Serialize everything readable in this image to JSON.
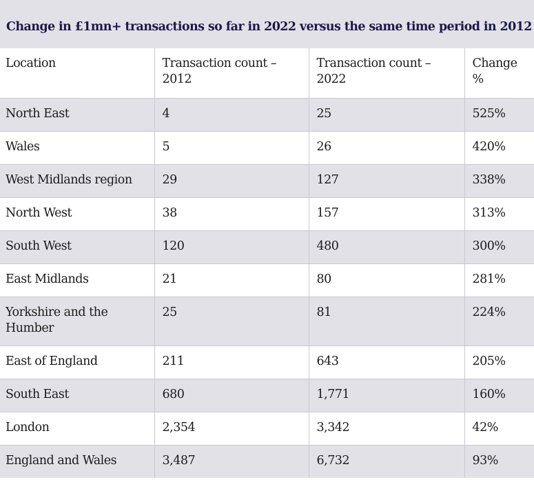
{
  "title": "Change in £1mn+ transactions so far in 2022 versus the same time period in 2012",
  "headers": {
    "location": "Location",
    "count_2012": "Transaction count – 2012",
    "count_2022": "Transaction count – 2022",
    "change": "Change %"
  },
  "rows": [
    {
      "location": "North East",
      "count_2012": "4",
      "count_2022": "25",
      "change": "525%"
    },
    {
      "location": "Wales",
      "count_2012": "5",
      "count_2022": "26",
      "change": "420%"
    },
    {
      "location": "West Midlands region",
      "count_2012": "29",
      "count_2022": "127",
      "change": "338%"
    },
    {
      "location": "North West",
      "count_2012": "38",
      "count_2022": "157",
      "change": "313%"
    },
    {
      "location": "South West",
      "count_2012": "120",
      "count_2022": "480",
      "change": "300%"
    },
    {
      "location": "East Midlands",
      "count_2012": "21",
      "count_2022": "80",
      "change": "281%"
    },
    {
      "location": "Yorkshire and the Humber",
      "count_2012": "25",
      "count_2022": "81",
      "change": "224%"
    },
    {
      "location": "East of England",
      "count_2012": "211",
      "count_2022": "643",
      "change": "205%"
    },
    {
      "location": "South East",
      "count_2012": "680",
      "count_2022": "1,771",
      "change": "160%"
    },
    {
      "location": "London",
      "count_2012": "2,354",
      "count_2022": "3,342",
      "change": "42%"
    },
    {
      "location": "England and Wales",
      "count_2012": "3,487",
      "count_2022": "6,732",
      "change": "93%"
    }
  ],
  "colors": {
    "title_text": "#1b1a4a",
    "shaded_row": "#e2e1e8",
    "grid_line": "#c9c8d2"
  }
}
